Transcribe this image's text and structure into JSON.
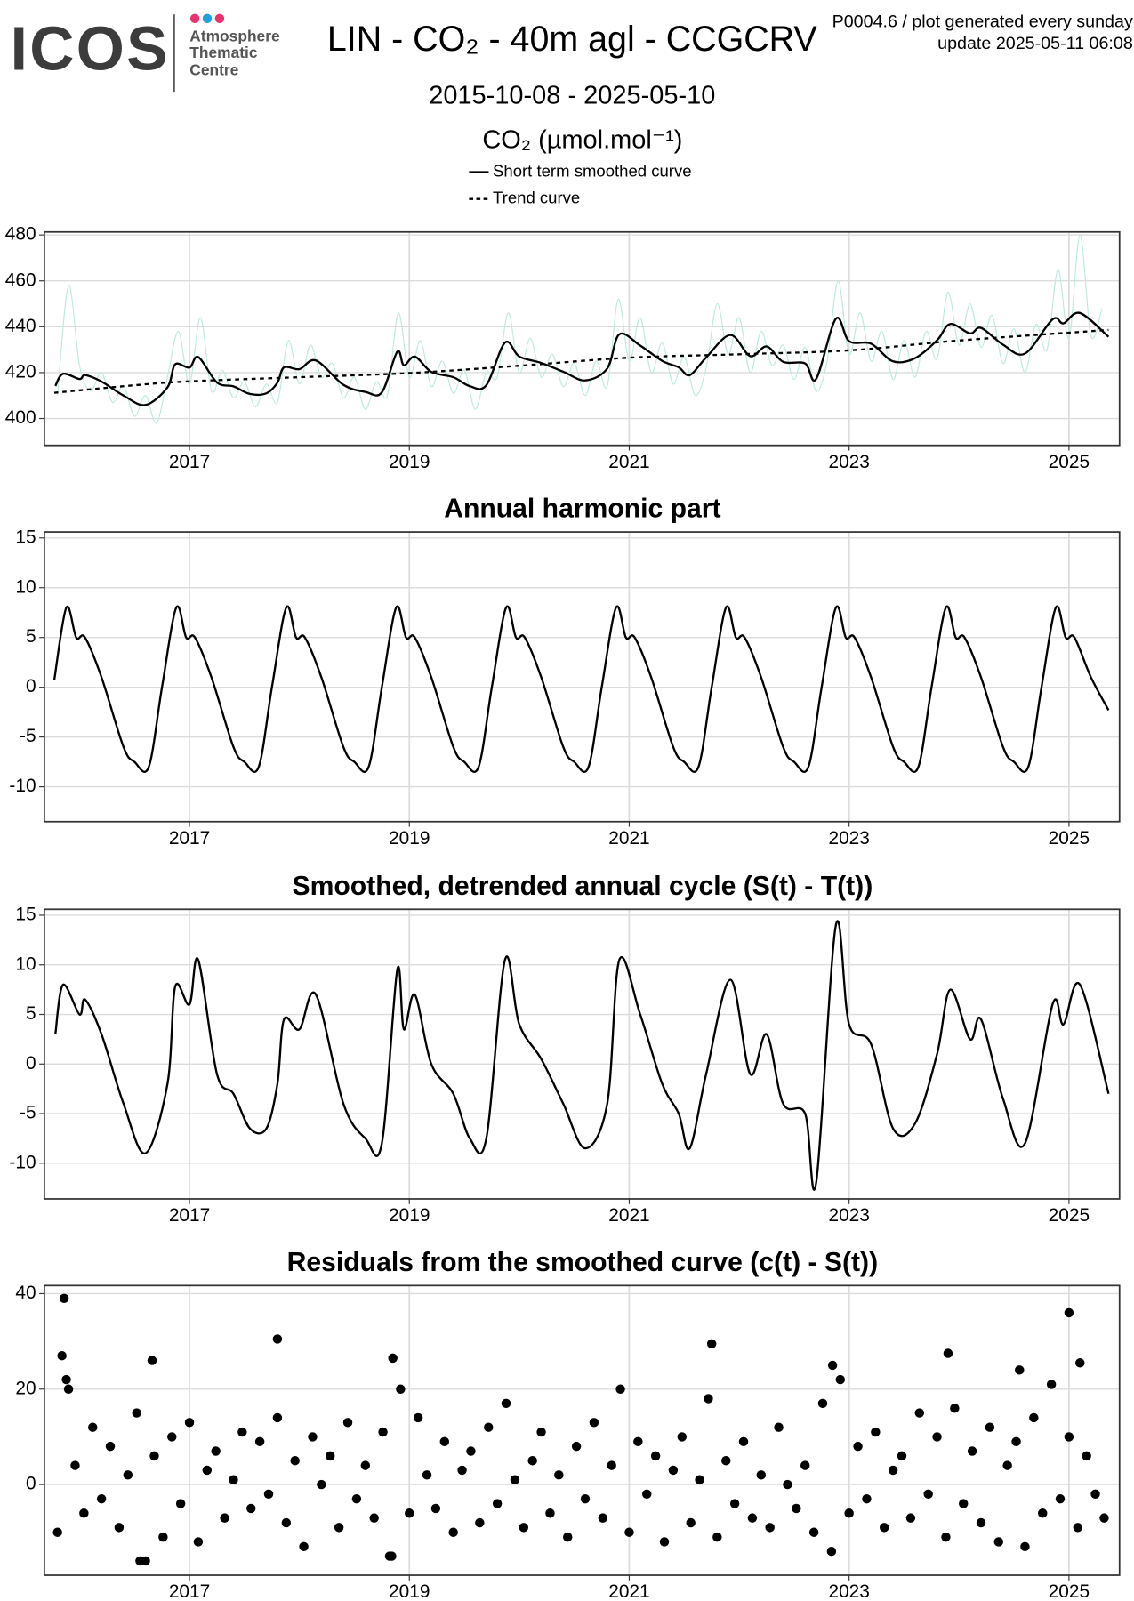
{
  "header": {
    "logo": "ICOS",
    "logo_lines": [
      "Atmosphere",
      "Thematic",
      "Centre"
    ],
    "title": "LIN - CO₂ - 40m agl - CCGCRV",
    "period": "2015-10-08 - 2025-05-10",
    "code": "P0004.6 / plot generated every sunday",
    "update": "update  2025-05-11 06:08"
  },
  "chart_data": [
    {
      "type": "line",
      "y_label": "CO₂ (µmol.mol⁻¹)",
      "legend": "top",
      "grid": true,
      "xlim": [
        2015.68,
        2025.46
      ],
      "xticks": [
        2017,
        2019,
        2021,
        2023,
        2025
      ],
      "ylim": [
        388.3,
        481.3
      ],
      "yticks": [
        400,
        420,
        440,
        460,
        480
      ],
      "series": [
        {
          "color": "#bfe9e1",
          "line_width": 1,
          "x": [
            2015.8,
            2015.9,
            2016.0,
            2016.1,
            2016.2,
            2016.3,
            2016.4,
            2016.5,
            2016.6,
            2016.7,
            2016.8,
            2016.9,
            2017.0,
            2017.1,
            2017.2,
            2017.3,
            2017.4,
            2017.5,
            2017.6,
            2017.7,
            2017.8,
            2017.9,
            2018.0,
            2018.1,
            2018.2,
            2018.3,
            2018.4,
            2018.5,
            2018.6,
            2018.7,
            2018.8,
            2018.9,
            2019.0,
            2019.1,
            2019.2,
            2019.3,
            2019.4,
            2019.5,
            2019.6,
            2019.7,
            2019.8,
            2019.9,
            2020.0,
            2020.1,
            2020.2,
            2020.3,
            2020.4,
            2020.5,
            2020.6,
            2020.7,
            2020.8,
            2020.9,
            2021.0,
            2021.1,
            2021.2,
            2021.3,
            2021.4,
            2021.5,
            2021.6,
            2021.7,
            2021.8,
            2021.9,
            2022.0,
            2022.1,
            2022.2,
            2022.3,
            2022.4,
            2022.5,
            2022.6,
            2022.7,
            2022.8,
            2022.9,
            2023.0,
            2023.1,
            2023.2,
            2023.3,
            2023.4,
            2023.5,
            2023.6,
            2023.7,
            2023.8,
            2023.9,
            2024.0,
            2024.1,
            2024.2,
            2024.3,
            2024.4,
            2024.5,
            2024.6,
            2024.7,
            2024.8,
            2024.9,
            2025.0,
            2025.1,
            2025.2,
            2025.3
          ],
          "values": [
            410,
            458,
            423,
            412,
            420,
            407,
            414,
            401,
            410,
            398,
            418,
            438,
            415,
            444,
            412,
            421,
            409,
            416,
            405,
            415,
            407,
            434,
            415,
            432,
            418,
            424,
            409,
            418,
            404,
            416,
            410,
            446,
            418,
            434,
            414,
            425,
            411,
            421,
            404,
            420,
            418,
            446,
            420,
            435,
            418,
            428,
            414,
            424,
            410,
            425,
            414,
            452,
            425,
            444,
            420,
            433,
            415,
            427,
            410,
            422,
            450,
            428,
            444,
            420,
            438,
            423,
            432,
            417,
            431,
            412,
            425,
            460,
            428,
            446,
            425,
            438,
            417,
            434,
            418,
            438,
            426,
            455,
            432,
            450,
            431,
            445,
            424,
            439,
            420,
            441,
            430,
            465,
            435,
            480,
            436,
            448
          ]
        },
        {
          "name": "Short term smoothed curve",
          "color": "#000000",
          "x": [
            2015.78,
            2015.85,
            2016.0,
            2016.05,
            2016.2,
            2016.4,
            2016.6,
            2016.8,
            2016.87,
            2017.0,
            2017.08,
            2017.25,
            2017.4,
            2017.55,
            2017.7,
            2017.8,
            2017.86,
            2018.0,
            2018.15,
            2018.4,
            2018.6,
            2018.75,
            2018.89,
            2018.95,
            2019.05,
            2019.2,
            2019.4,
            2019.55,
            2019.7,
            2019.87,
            2020.0,
            2020.2,
            2020.4,
            2020.6,
            2020.8,
            2020.91,
            2021.1,
            2021.3,
            2021.45,
            2021.55,
            2021.7,
            2021.92,
            2022.1,
            2022.25,
            2022.4,
            2022.6,
            2022.7,
            2022.88,
            2023.0,
            2023.2,
            2023.4,
            2023.6,
            2023.8,
            2023.92,
            2024.1,
            2024.2,
            2024.4,
            2024.6,
            2024.85,
            2024.95,
            2025.1,
            2025.36
          ],
          "values": [
            414.2,
            419.5,
            417.2,
            418.9,
            416.1,
            410,
            405.9,
            413.6,
            423.6,
            422.2,
            426.8,
            415.7,
            414,
            410.7,
            411,
            415.6,
            422.3,
            421.5,
            425.3,
            414.7,
            411.6,
            411.4,
            429.1,
            423.2,
            427,
            420.3,
            418,
            414.1,
            414.5,
            433.1,
            427,
            424.2,
            420.4,
            416.6,
            421.8,
            436.7,
            431.8,
            425.1,
            422.3,
            418.9,
            426.6,
            436.4,
            427.2,
            431.4,
            424.7,
            424,
            417.2,
            443.5,
            433.7,
            432.6,
            424.9,
            426.3,
            434.1,
            441.2,
            437.1,
            439.5,
            432.2,
            428.3,
            443.2,
            441.5,
            446,
            435.6
          ]
        },
        {
          "name": "Trend curve",
          "color": "#000000",
          "dashed": true,
          "x": [
            2015.77,
            2016.5,
            2017,
            2018,
            2019,
            2020,
            2021,
            2022,
            2023,
            2024,
            2025.36
          ],
          "values": [
            411.2,
            414.5,
            416.2,
            418,
            419.8,
            423,
            426.5,
            428,
            429.7,
            434,
            438.6
          ]
        }
      ]
    },
    {
      "type": "line",
      "title": "Annual harmonic part",
      "grid": true,
      "xlim": [
        2015.68,
        2025.46
      ],
      "xticks": [
        2017,
        2019,
        2021,
        2023,
        2025
      ],
      "ylim": [
        -13.5,
        15.6
      ],
      "yticks": [
        -10,
        -5,
        0,
        5,
        10,
        15
      ],
      "x": [
        2015.77,
        2015.88,
        2015.97,
        2016.05,
        2016.2,
        2016.4,
        2016.5,
        2016.63,
        2016.75,
        2016.88,
        2016.97,
        2017.05,
        2017.2,
        2017.4,
        2017.5,
        2017.63,
        2017.75,
        2017.88,
        2017.97,
        2018.05,
        2018.2,
        2018.4,
        2018.5,
        2018.63,
        2018.75,
        2018.88,
        2018.97,
        2019.05,
        2019.2,
        2019.4,
        2019.5,
        2019.63,
        2019.75,
        2019.88,
        2019.97,
        2020.05,
        2020.2,
        2020.4,
        2020.5,
        2020.63,
        2020.75,
        2020.88,
        2020.97,
        2021.05,
        2021.2,
        2021.4,
        2021.5,
        2021.63,
        2021.75,
        2021.88,
        2021.97,
        2022.05,
        2022.2,
        2022.4,
        2022.5,
        2022.63,
        2022.75,
        2022.88,
        2022.97,
        2023.05,
        2023.2,
        2023.4,
        2023.5,
        2023.63,
        2023.75,
        2023.88,
        2023.97,
        2024.05,
        2024.2,
        2024.4,
        2024.5,
        2024.63,
        2024.75,
        2024.88,
        2024.97,
        2025.05,
        2025.2,
        2025.36
      ],
      "series": [
        {
          "color": "#000000",
          "values": [
            0.7,
            8,
            5,
            5,
            1,
            -6,
            -7.5,
            -8,
            0,
            8,
            5,
            5,
            1,
            -6,
            -7.5,
            -8,
            0,
            8,
            5,
            5,
            1,
            -6,
            -7.5,
            -8,
            0,
            8,
            5,
            5,
            1,
            -6,
            -7.5,
            -8,
            0,
            8,
            5,
            5,
            1,
            -6,
            -7.5,
            -8,
            0,
            8,
            5,
            5,
            1,
            -6,
            -7.5,
            -8,
            0,
            8,
            5,
            5,
            1,
            -6,
            -7.5,
            -8,
            0,
            8,
            5,
            5,
            1,
            -6,
            -7.5,
            -8,
            0,
            8,
            5,
            5,
            1,
            -6,
            -7.5,
            -8,
            0,
            8,
            5,
            5,
            1,
            -2.3
          ]
        }
      ]
    },
    {
      "type": "line",
      "title": "Smoothed, detrended annual cycle (S(t) - T(t))",
      "grid": true,
      "xlim": [
        2015.68,
        2025.46
      ],
      "xticks": [
        2017,
        2019,
        2021,
        2023,
        2025
      ],
      "ylim": [
        -13.6,
        15.6
      ],
      "yticks": [
        -10,
        -5,
        0,
        5,
        10,
        15
      ],
      "x": [
        2015.78,
        2015.85,
        2016.0,
        2016.05,
        2016.2,
        2016.4,
        2016.6,
        2016.8,
        2016.87,
        2017.0,
        2017.08,
        2017.25,
        2017.4,
        2017.55,
        2017.7,
        2017.8,
        2017.86,
        2018.0,
        2018.15,
        2018.4,
        2018.6,
        2018.75,
        2018.89,
        2018.95,
        2019.05,
        2019.2,
        2019.4,
        2019.55,
        2019.7,
        2019.87,
        2020.0,
        2020.2,
        2020.4,
        2020.6,
        2020.8,
        2020.91,
        2021.1,
        2021.3,
        2021.45,
        2021.55,
        2021.7,
        2021.92,
        2022.1,
        2022.25,
        2022.4,
        2022.6,
        2022.7,
        2022.88,
        2023.0,
        2023.2,
        2023.4,
        2023.6,
        2023.8,
        2023.92,
        2024.1,
        2024.2,
        2024.4,
        2024.6,
        2024.85,
        2024.95,
        2025.1,
        2025.36
      ],
      "series": [
        {
          "color": "#000000",
          "values": [
            3,
            8,
            5,
            6.5,
            3,
            -4,
            -9,
            -2,
            7.8,
            6,
            10.5,
            -1,
            -3,
            -6.5,
            -6.5,
            -2,
            4.5,
            3.5,
            7,
            -4,
            -7.5,
            -8,
            9.5,
            3.5,
            7,
            0,
            -3,
            -7.5,
            -7.5,
            10.5,
            4,
            0.5,
            -4,
            -8.5,
            -4,
            10.5,
            5,
            -2,
            -5,
            -8.5,
            -1,
            8.5,
            -1,
            3,
            -4,
            -5,
            -12,
            14,
            4,
            2,
            -6.5,
            -6,
            1,
            7.5,
            2.5,
            4.5,
            -3.5,
            -8,
            6,
            4,
            8,
            -3
          ]
        }
      ]
    },
    {
      "type": "scatter",
      "title": "Residuals from the smoothed curve (c(t) - S(t))",
      "grid": true,
      "color": "#000000",
      "xlim": [
        2015.68,
        2025.46
      ],
      "xticks": [
        2017,
        2019,
        2021,
        2023,
        2025
      ],
      "ylim": [
        -19,
        41.7
      ],
      "yticks": [
        0,
        20,
        40
      ],
      "x": [
        2015.8,
        2015.88,
        2015.96,
        2016.04,
        2016.12,
        2016.2,
        2016.28,
        2016.36,
        2016.44,
        2016.52,
        2016.6,
        2016.68,
        2016.76,
        2016.84,
        2016.92,
        2017.0,
        2017.08,
        2017.16,
        2017.24,
        2017.32,
        2017.4,
        2017.48,
        2017.56,
        2017.64,
        2017.72,
        2017.8,
        2017.88,
        2017.96,
        2018.04,
        2018.12,
        2018.2,
        2018.28,
        2018.36,
        2018.44,
        2018.52,
        2018.6,
        2018.68,
        2018.76,
        2018.84,
        2018.92,
        2019.0,
        2019.08,
        2019.16,
        2019.24,
        2019.32,
        2019.4,
        2019.48,
        2019.56,
        2019.64,
        2019.72,
        2019.8,
        2019.88,
        2019.96,
        2020.04,
        2020.12,
        2020.2,
        2020.28,
        2020.36,
        2020.44,
        2020.52,
        2020.6,
        2020.68,
        2020.76,
        2020.84,
        2020.92,
        2021.0,
        2021.08,
        2021.16,
        2021.24,
        2021.32,
        2021.4,
        2021.48,
        2021.56,
        2021.64,
        2021.72,
        2021.8,
        2021.88,
        2021.96,
        2022.04,
        2022.12,
        2022.2,
        2022.28,
        2022.36,
        2022.44,
        2022.52,
        2022.6,
        2022.68,
        2022.76,
        2022.84,
        2022.92,
        2023.0,
        2023.08,
        2023.16,
        2023.24,
        2023.32,
        2023.4,
        2023.48,
        2023.56,
        2023.64,
        2023.72,
        2023.8,
        2023.88,
        2023.96,
        2024.04,
        2024.12,
        2024.2,
        2024.28,
        2024.36,
        2024.44,
        2024.52,
        2024.6,
        2024.68,
        2024.76,
        2024.84,
        2024.92,
        2025.0,
        2025.08,
        2025.16,
        2025.24,
        2025.32,
        2015.86,
        2015.84,
        2016.66,
        2016.55,
        2017.8,
        2018.85,
        2018.82,
        2021.75,
        2022.85,
        2023.9,
        2024.55,
        2025.0,
        2025.1,
        2015.9
      ],
      "values": [
        -10,
        22,
        4,
        -6,
        12,
        -3,
        8,
        -9,
        2,
        15,
        -16,
        6,
        -11,
        10,
        -4,
        13,
        -12,
        3,
        7,
        -7,
        1,
        11,
        -5,
        9,
        -2,
        14,
        -8,
        5,
        -13,
        10,
        0,
        6,
        -9,
        13,
        -3,
        4,
        -7,
        11,
        -15,
        20,
        -6,
        14,
        2,
        -5,
        9,
        -10,
        3,
        7,
        -8,
        12,
        -4,
        17,
        1,
        -9,
        5,
        11,
        -6,
        2,
        -11,
        8,
        -3,
        13,
        -7,
        4,
        20,
        -10,
        9,
        -2,
        6,
        -12,
        3,
        10,
        -8,
        1,
        18,
        -11,
        5,
        -4,
        9,
        -7,
        2,
        -9,
        12,
        0,
        -5,
        4,
        -10,
        17,
        -14,
        22,
        -6,
        8,
        -3,
        11,
        -9,
        3,
        6,
        -7,
        15,
        -2,
        10,
        -11,
        16,
        -4,
        7,
        -8,
        12,
        -12,
        4,
        9,
        -13,
        14,
        -6,
        21,
        -3,
        10,
        -9,
        6,
        -2,
        -7,
        39,
        27,
        26,
        -16,
        30.5,
        26.5,
        -15,
        29.5,
        25,
        27.5,
        24,
        36,
        25.5,
        20
      ]
    }
  ]
}
